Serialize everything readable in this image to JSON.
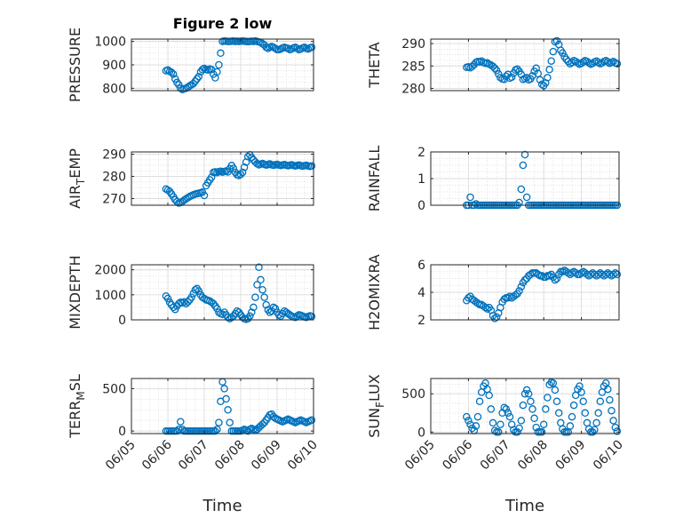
{
  "figure": {
    "title": "Figure 2 low",
    "x_tick_labels": [
      "06/05",
      "06/06",
      "06/07",
      "06/08",
      "06/09",
      "06/10"
    ],
    "x_label": "Time",
    "marker_color": "#0072BD"
  },
  "chart_data": [
    {
      "type": "scatter",
      "ylabel": "PRESSURE",
      "ylim": [
        790,
        1010
      ],
      "yticks": [
        800,
        900,
        1000
      ],
      "x": [
        0.95,
        1.0,
        1.05,
        1.1,
        1.15,
        1.2,
        1.25,
        1.3,
        1.35,
        1.4,
        1.45,
        1.5,
        1.55,
        1.6,
        1.65,
        1.7,
        1.75,
        1.8,
        1.85,
        1.9,
        1.95,
        2.0,
        2.05,
        2.1,
        2.15,
        2.2,
        2.25,
        2.3,
        2.35,
        2.4,
        2.45,
        2.5,
        2.55,
        2.6,
        2.65,
        2.7,
        2.75,
        2.8,
        2.85,
        2.9,
        2.95,
        3.0,
        3.05,
        3.1,
        3.15,
        3.2,
        3.25,
        3.3,
        3.35,
        3.4,
        3.45,
        3.5,
        3.55,
        3.6,
        3.65,
        3.7,
        3.75,
        3.8,
        3.85,
        3.9,
        3.95,
        4.0,
        4.05,
        4.1,
        4.15,
        4.2,
        4.25,
        4.3,
        4.35,
        4.4,
        4.45,
        4.5,
        4.55,
        4.6,
        4.65,
        4.7,
        4.75,
        4.8,
        4.85,
        4.9,
        4.95
      ],
      "y": [
        875,
        878,
        872,
        868,
        860,
        840,
        825,
        815,
        800,
        795,
        798,
        800,
        805,
        810,
        815,
        820,
        830,
        840,
        850,
        870,
        880,
        885,
        880,
        878,
        882,
        880,
        860,
        845,
        870,
        900,
        950,
        1000,
        1002,
        1001,
        1000,
        1000,
        1001,
        1002,
        1000,
        1001,
        1000,
        1001,
        1002,
        1001,
        1000,
        999,
        1000,
        1001,
        1000,
        1002,
        1000,
        998,
        996,
        990,
        985,
        975,
        970,
        975,
        978,
        975,
        970,
        965,
        965,
        968,
        972,
        975,
        972,
        970,
        965,
        968,
        972,
        975,
        970,
        965,
        968,
        972,
        975,
        970,
        968,
        972,
        975
      ]
    },
    {
      "type": "scatter",
      "ylabel": "THETA",
      "ylim": [
        279.5,
        291
      ],
      "yticks": [
        280,
        285,
        290
      ],
      "x": [
        0.95,
        1.0,
        1.05,
        1.1,
        1.15,
        1.2,
        1.25,
        1.3,
        1.35,
        1.4,
        1.45,
        1.5,
        1.55,
        1.6,
        1.65,
        1.7,
        1.75,
        1.8,
        1.85,
        1.9,
        1.95,
        2.0,
        2.05,
        2.1,
        2.15,
        2.2,
        2.25,
        2.3,
        2.35,
        2.4,
        2.45,
        2.5,
        2.55,
        2.6,
        2.65,
        2.7,
        2.75,
        2.8,
        2.85,
        2.9,
        2.95,
        3.0,
        3.05,
        3.1,
        3.15,
        3.2,
        3.25,
        3.3,
        3.35,
        3.4,
        3.45,
        3.5,
        3.55,
        3.6,
        3.65,
        3.7,
        3.75,
        3.8,
        3.85,
        3.9,
        3.95,
        4.0,
        4.05,
        4.1,
        4.15,
        4.2,
        4.25,
        4.3,
        4.35,
        4.4,
        4.45,
        4.5,
        4.55,
        4.6,
        4.65,
        4.7,
        4.75,
        4.8,
        4.85,
        4.9,
        4.95
      ],
      "y": [
        284.7,
        284.8,
        284.6,
        284.9,
        285.3,
        285.8,
        286.0,
        285.9,
        286.1,
        285.8,
        285.6,
        285.7,
        285.4,
        285.2,
        284.9,
        284.5,
        284.0,
        283.2,
        282.4,
        282.1,
        282.0,
        282.7,
        283.1,
        282.3,
        282.5,
        283.4,
        284.1,
        284.3,
        283.8,
        283.1,
        282.0,
        282.2,
        282.4,
        281.9,
        282.1,
        282.8,
        283.8,
        284.5,
        283.3,
        281.9,
        280.9,
        280.6,
        281.2,
        282.4,
        284.2,
        286.1,
        288.2,
        290.4,
        290.6,
        289.8,
        288.5,
        287.9,
        287.1,
        286.5,
        286.0,
        285.5,
        285.8,
        286.2,
        286.0,
        285.7,
        285.4,
        285.6,
        285.9,
        286.2,
        286.0,
        285.7,
        285.4,
        285.6,
        285.9,
        286.1,
        285.8,
        285.5,
        285.7,
        286.0,
        286.2,
        285.9,
        285.6,
        285.8,
        286.0,
        285.7,
        285.5
      ]
    },
    {
      "type": "scatter",
      "ylabel": "AIR_TEMP",
      "ylim": [
        267,
        291
      ],
      "yticks": [
        270,
        280,
        290
      ],
      "x": [
        0.95,
        1.0,
        1.05,
        1.1,
        1.15,
        1.2,
        1.25,
        1.3,
        1.35,
        1.4,
        1.45,
        1.5,
        1.55,
        1.6,
        1.65,
        1.7,
        1.75,
        1.8,
        1.85,
        1.9,
        1.95,
        2.0,
        2.05,
        2.1,
        2.15,
        2.2,
        2.25,
        2.3,
        2.35,
        2.4,
        2.45,
        2.5,
        2.55,
        2.6,
        2.65,
        2.7,
        2.75,
        2.8,
        2.85,
        2.9,
        2.95,
        3.0,
        3.05,
        3.1,
        3.15,
        3.2,
        3.25,
        3.3,
        3.35,
        3.4,
        3.45,
        3.5,
        3.55,
        3.6,
        3.65,
        3.7,
        3.75,
        3.8,
        3.85,
        3.9,
        3.95,
        4.0,
        4.05,
        4.1,
        4.15,
        4.2,
        4.25,
        4.3,
        4.35,
        4.4,
        4.45,
        4.5,
        4.55,
        4.6,
        4.65,
        4.7,
        4.75,
        4.8,
        4.85,
        4.9,
        4.95
      ],
      "y": [
        274.3,
        273.8,
        273.2,
        272.1,
        270.8,
        269.5,
        268.6,
        268.0,
        268.2,
        268.7,
        269.3,
        269.9,
        270.4,
        270.9,
        271.3,
        271.7,
        272.0,
        272.2,
        272.4,
        272.6,
        272.9,
        271.4,
        275.8,
        277.1,
        278.4,
        279.6,
        281.8,
        282.0,
        281.7,
        282.1,
        282.3,
        281.9,
        282.2,
        282.4,
        282.0,
        283.5,
        284.9,
        283.6,
        281.8,
        280.7,
        280.4,
        280.9,
        281.8,
        284.1,
        286.4,
        288.9,
        289.7,
        288.5,
        287.4,
        286.5,
        285.7,
        285.2,
        285.5,
        285.8,
        285.4,
        285.1,
        285.3,
        285.6,
        285.2,
        285.0,
        285.2,
        285.4,
        285.1,
        284.9,
        285.1,
        285.3,
        285.0,
        284.8,
        285.0,
        285.2,
        284.9,
        284.7,
        284.9,
        285.1,
        284.8,
        284.6,
        284.8,
        285.0,
        284.7,
        284.5,
        284.7
      ]
    },
    {
      "type": "scatter",
      "ylabel": "RAINFALL",
      "ylim": [
        0,
        2
      ],
      "yticks": [
        0,
        1,
        2
      ],
      "x": [
        0.95,
        1.0,
        1.05,
        1.1,
        1.15,
        1.2,
        1.25,
        1.3,
        1.35,
        1.4,
        1.45,
        1.5,
        1.55,
        1.6,
        1.65,
        1.7,
        1.75,
        1.8,
        1.85,
        1.9,
        1.95,
        2.0,
        2.05,
        2.1,
        2.15,
        2.2,
        2.25,
        2.3,
        2.35,
        2.4,
        2.45,
        2.5,
        2.55,
        2.6,
        2.65,
        2.7,
        2.75,
        2.8,
        2.85,
        2.9,
        2.95,
        3.0,
        3.05,
        3.1,
        3.15,
        3.2,
        3.25,
        3.3,
        3.35,
        3.4,
        3.45,
        3.5,
        3.55,
        3.6,
        3.65,
        3.7,
        3.75,
        3.8,
        3.85,
        3.9,
        3.95,
        4.0,
        4.05,
        4.1,
        4.15,
        4.2,
        4.25,
        4.3,
        4.35,
        4.4,
        4.45,
        4.5,
        4.55,
        4.6,
        4.65,
        4.7,
        4.75,
        4.8,
        4.85,
        4.9,
        4.95
      ],
      "y": [
        0,
        0,
        0.3,
        0,
        0,
        0.05,
        0,
        0,
        0,
        0,
        0,
        0,
        0,
        0,
        0,
        0,
        0,
        0,
        0,
        0,
        0,
        0,
        0,
        0,
        0,
        0,
        0,
        0,
        0.1,
        0.6,
        1.5,
        1.9,
        0.3,
        0,
        0,
        0,
        0,
        0,
        0,
        0,
        0,
        0,
        0,
        0,
        0,
        0,
        0,
        0,
        0,
        0,
        0,
        0,
        0,
        0,
        0,
        0,
        0,
        0,
        0,
        0,
        0,
        0,
        0,
        0,
        0,
        0,
        0,
        0,
        0,
        0,
        0,
        0,
        0,
        0,
        0,
        0,
        0,
        0,
        0,
        0,
        0
      ]
    },
    {
      "type": "scatter",
      "ylabel": "MIXDEPTH",
      "ylim": [
        0,
        2200
      ],
      "yticks": [
        0,
        1000,
        2000
      ],
      "x": [
        0.95,
        1.0,
        1.05,
        1.1,
        1.15,
        1.2,
        1.25,
        1.3,
        1.35,
        1.4,
        1.45,
        1.5,
        1.55,
        1.6,
        1.65,
        1.7,
        1.75,
        1.8,
        1.85,
        1.9,
        1.95,
        2.0,
        2.05,
        2.1,
        2.15,
        2.2,
        2.25,
        2.3,
        2.35,
        2.4,
        2.45,
        2.5,
        2.55,
        2.6,
        2.65,
        2.7,
        2.75,
        2.8,
        2.85,
        2.9,
        2.95,
        3.0,
        3.05,
        3.1,
        3.15,
        3.2,
        3.25,
        3.3,
        3.35,
        3.4,
        3.45,
        3.5,
        3.55,
        3.6,
        3.65,
        3.7,
        3.75,
        3.8,
        3.85,
        3.9,
        3.95,
        4.0,
        4.05,
        4.1,
        4.15,
        4.2,
        4.25,
        4.3,
        4.35,
        4.4,
        4.45,
        4.5,
        4.55,
        4.6,
        4.65,
        4.7,
        4.75,
        4.8,
        4.85,
        4.9,
        4.95
      ],
      "y": [
        950,
        850,
        700,
        600,
        500,
        420,
        550,
        650,
        700,
        680,
        720,
        650,
        720,
        800,
        900,
        1050,
        1200,
        1250,
        1150,
        1000,
        900,
        850,
        800,
        780,
        750,
        700,
        650,
        550,
        450,
        300,
        250,
        220,
        300,
        200,
        100,
        50,
        100,
        150,
        250,
        350,
        300,
        200,
        100,
        50,
        20,
        50,
        150,
        300,
        500,
        900,
        1400,
        2100,
        1600,
        1200,
        900,
        600,
        400,
        300,
        350,
        500,
        450,
        300,
        200,
        150,
        250,
        350,
        300,
        250,
        200,
        150,
        120,
        100,
        150,
        200,
        180,
        150,
        120,
        100,
        130,
        160,
        140
      ]
    },
    {
      "type": "scatter",
      "ylabel": "H2OMIXRA",
      "ylim": [
        2,
        6
      ],
      "yticks": [
        2,
        4,
        6
      ],
      "x": [
        0.95,
        1.0,
        1.05,
        1.1,
        1.15,
        1.2,
        1.25,
        1.3,
        1.35,
        1.4,
        1.45,
        1.5,
        1.55,
        1.6,
        1.65,
        1.7,
        1.75,
        1.8,
        1.85,
        1.9,
        1.95,
        2.0,
        2.05,
        2.1,
        2.15,
        2.2,
        2.25,
        2.3,
        2.35,
        2.4,
        2.45,
        2.5,
        2.55,
        2.6,
        2.65,
        2.7,
        2.75,
        2.8,
        2.85,
        2.9,
        2.95,
        3.0,
        3.05,
        3.1,
        3.15,
        3.2,
        3.25,
        3.3,
        3.35,
        3.4,
        3.45,
        3.5,
        3.55,
        3.6,
        3.65,
        3.7,
        3.75,
        3.8,
        3.85,
        3.9,
        3.95,
        4.0,
        4.05,
        4.1,
        4.15,
        4.2,
        4.25,
        4.3,
        4.35,
        4.4,
        4.45,
        4.5,
        4.55,
        4.6,
        4.65,
        4.7,
        4.75,
        4.8,
        4.85,
        4.9,
        4.95
      ],
      "y": [
        3.4,
        3.6,
        3.7,
        3.5,
        3.4,
        3.3,
        3.2,
        3.1,
        3.1,
        3.0,
        2.9,
        2.8,
        2.9,
        2.7,
        2.3,
        2.1,
        2.2,
        2.5,
        2.9,
        3.3,
        3.5,
        3.6,
        3.6,
        3.7,
        3.6,
        3.7,
        3.8,
        3.9,
        4.1,
        4.4,
        4.7,
        4.9,
        5.0,
        5.2,
        5.3,
        5.4,
        5.4,
        5.4,
        5.3,
        5.2,
        5.2,
        5.1,
        5.1,
        5.2,
        5.2,
        5.3,
        5.1,
        4.9,
        5.0,
        5.3,
        5.5,
        5.5,
        5.6,
        5.5,
        5.4,
        5.3,
        5.4,
        5.5,
        5.4,
        5.3,
        5.3,
        5.4,
        5.5,
        5.4,
        5.3,
        5.2,
        5.3,
        5.4,
        5.3,
        5.2,
        5.3,
        5.4,
        5.3,
        5.2,
        5.3,
        5.4,
        5.3,
        5.2,
        5.3,
        5.4,
        5.3
      ]
    },
    {
      "type": "scatter",
      "ylabel": "TERR_MSL",
      "ylim": [
        -30,
        620
      ],
      "yticks": [
        0,
        500
      ],
      "x": [
        0.95,
        1.0,
        1.05,
        1.1,
        1.15,
        1.2,
        1.25,
        1.3,
        1.35,
        1.4,
        1.45,
        1.5,
        1.55,
        1.6,
        1.65,
        1.7,
        1.75,
        1.8,
        1.85,
        1.9,
        1.95,
        2.0,
        2.05,
        2.1,
        2.15,
        2.2,
        2.25,
        2.3,
        2.35,
        2.4,
        2.45,
        2.5,
        2.55,
        2.6,
        2.65,
        2.7,
        2.75,
        2.8,
        2.85,
        2.9,
        2.95,
        3.0,
        3.05,
        3.1,
        3.15,
        3.2,
        3.25,
        3.3,
        3.35,
        3.4,
        3.45,
        3.5,
        3.55,
        3.6,
        3.65,
        3.7,
        3.75,
        3.8,
        3.85,
        3.9,
        3.95,
        4.0,
        4.05,
        4.1,
        4.15,
        4.2,
        4.25,
        4.3,
        4.35,
        4.4,
        4.45,
        4.5,
        4.55,
        4.6,
        4.65,
        4.7,
        4.75,
        4.8,
        4.85,
        4.9,
        4.95
      ],
      "y": [
        0,
        0,
        0,
        0,
        0,
        0,
        0,
        20,
        110,
        20,
        0,
        0,
        0,
        0,
        0,
        0,
        0,
        0,
        0,
        0,
        0,
        0,
        0,
        0,
        0,
        0,
        0,
        0,
        20,
        100,
        350,
        580,
        500,
        380,
        250,
        100,
        0,
        0,
        0,
        0,
        0,
        0,
        10,
        20,
        10,
        0,
        20,
        30,
        20,
        10,
        20,
        40,
        60,
        80,
        100,
        130,
        160,
        190,
        200,
        170,
        150,
        140,
        130,
        120,
        110,
        120,
        130,
        140,
        130,
        120,
        110,
        100,
        110,
        120,
        130,
        120,
        110,
        100,
        110,
        120,
        130
      ]
    },
    {
      "type": "scatter",
      "ylabel": "SUN_FLUX",
      "ylim": [
        -20,
        700
      ],
      "yticks": [
        0,
        500
      ],
      "x": [
        0.95,
        1.0,
        1.05,
        1.1,
        1.15,
        1.2,
        1.25,
        1.3,
        1.35,
        1.4,
        1.45,
        1.5,
        1.55,
        1.6,
        1.65,
        1.7,
        1.75,
        1.8,
        1.85,
        1.9,
        1.95,
        2.0,
        2.05,
        2.1,
        2.15,
        2.2,
        2.25,
        2.3,
        2.35,
        2.4,
        2.45,
        2.5,
        2.55,
        2.6,
        2.65,
        2.7,
        2.75,
        2.8,
        2.85,
        2.9,
        2.95,
        3.0,
        3.05,
        3.1,
        3.15,
        3.2,
        3.25,
        3.3,
        3.35,
        3.4,
        3.45,
        3.5,
        3.55,
        3.6,
        3.65,
        3.7,
        3.75,
        3.8,
        3.85,
        3.9,
        3.95,
        4.0,
        4.05,
        4.1,
        4.15,
        4.2,
        4.25,
        4.3,
        4.35,
        4.4,
        4.45,
        4.5,
        4.55,
        4.6,
        4.65,
        4.7,
        4.75,
        4.8,
        4.85,
        4.9,
        4.95
      ],
      "y": [
        200,
        150,
        100,
        50,
        20,
        80,
        200,
        400,
        520,
        600,
        640,
        560,
        480,
        300,
        120,
        20,
        0,
        0,
        100,
        250,
        320,
        300,
        250,
        200,
        100,
        30,
        0,
        0,
        50,
        150,
        350,
        500,
        550,
        500,
        400,
        300,
        180,
        60,
        0,
        0,
        0,
        100,
        300,
        450,
        620,
        650,
        640,
        550,
        400,
        250,
        120,
        40,
        0,
        0,
        0,
        80,
        200,
        350,
        480,
        560,
        600,
        520,
        400,
        250,
        120,
        40,
        0,
        0,
        30,
        120,
        250,
        400,
        520,
        600,
        640,
        560,
        420,
        280,
        150,
        60,
        10
      ]
    }
  ]
}
